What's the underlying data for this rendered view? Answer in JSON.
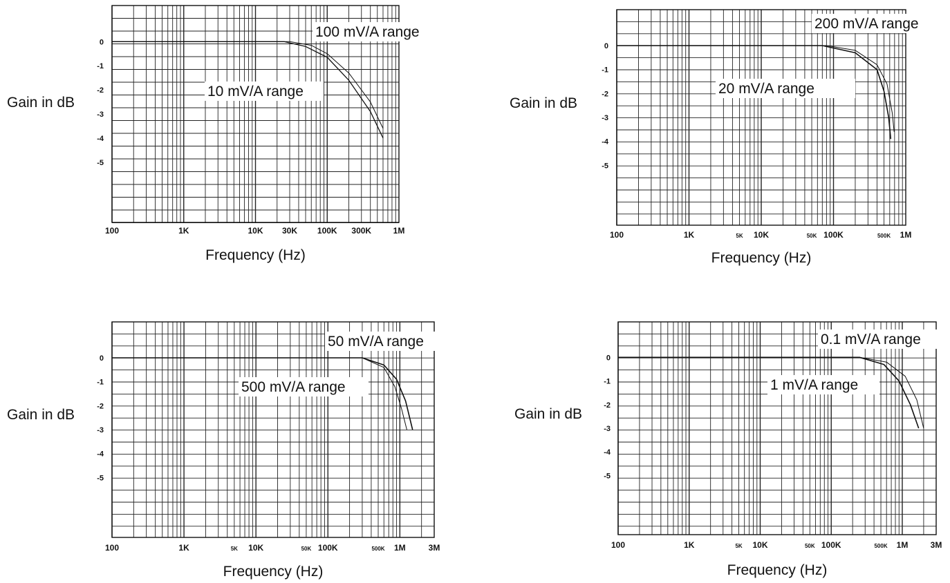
{
  "chart_data": [
    {
      "type": "line",
      "title": "",
      "xlabel": "Frequency (Hz)",
      "ylabel": "Gain in dB",
      "xscale": "log",
      "xlim": [
        100,
        1000000
      ],
      "ylim": [
        -7.5,
        1.5
      ],
      "x_ticks": [
        {
          "value": 100,
          "label": "100",
          "size": "large"
        },
        {
          "value": 1000,
          "label": "1K",
          "size": "large"
        },
        {
          "value": 10000,
          "label": "10K",
          "size": "large"
        },
        {
          "value": 30000,
          "label": "30K",
          "size": "large"
        },
        {
          "value": 100000,
          "label": "100K",
          "size": "large"
        },
        {
          "value": 300000,
          "label": "300K",
          "size": "large"
        },
        {
          "value": 1000000,
          "label": "1M",
          "size": "large"
        }
      ],
      "y_ticks": [
        "0",
        "-1",
        "-2",
        "-3",
        "-4",
        "-5"
      ],
      "grid": true,
      "series": [
        {
          "name": "100 mV/A range",
          "x": [
            30000,
            60000,
            100000,
            200000,
            400000,
            600000
          ],
          "y": [
            0,
            -0.15,
            -0.5,
            -1.3,
            -2.5,
            -3.6
          ]
        },
        {
          "name": "10 mV/A range",
          "x": [
            25000,
            50000,
            100000,
            200000,
            400000,
            600000
          ],
          "y": [
            0,
            -0.2,
            -0.65,
            -1.6,
            -2.9,
            -4.0
          ]
        }
      ],
      "annotations": [
        {
          "text": "100 mV/A range",
          "series": 0
        },
        {
          "text": "10 mV/A range",
          "series": 1
        }
      ]
    },
    {
      "type": "line",
      "title": "",
      "xlabel": "Frequency (Hz)",
      "ylabel": "Gain in dB",
      "xscale": "log",
      "xlim": [
        100,
        1000000
      ],
      "ylim": [
        -7.5,
        1.5
      ],
      "x_ticks": [
        {
          "value": 100,
          "label": "100",
          "size": "large"
        },
        {
          "value": 1000,
          "label": "1K",
          "size": "large"
        },
        {
          "value": 5000,
          "label": "5K",
          "size": "small"
        },
        {
          "value": 10000,
          "label": "10K",
          "size": "large"
        },
        {
          "value": 50000,
          "label": "50K",
          "size": "small"
        },
        {
          "value": 100000,
          "label": "100K",
          "size": "large"
        },
        {
          "value": 500000,
          "label": "500K",
          "size": "small"
        },
        {
          "value": 1000000,
          "label": "1M",
          "size": "large"
        }
      ],
      "y_ticks": [
        "0",
        "-1",
        "-2",
        "-3",
        "-4",
        "-5"
      ],
      "grid": true,
      "series": [
        {
          "name": "200 mV/A range",
          "x": [
            80000,
            200000,
            400000,
            550000,
            650000,
            690000
          ],
          "y": [
            0,
            -0.2,
            -0.8,
            -1.6,
            -2.8,
            -3.6
          ]
        },
        {
          "name": "20 mV/A range",
          "x": [
            70000,
            200000,
            400000,
            500000,
            580000,
            620000
          ],
          "y": [
            0,
            -0.3,
            -1.0,
            -1.9,
            -3.0,
            -3.9
          ]
        }
      ],
      "annotations": [
        {
          "text": "200 mV/A range",
          "series": 0
        },
        {
          "text": "20 mV/A range",
          "series": 1
        }
      ]
    },
    {
      "type": "line",
      "title": "",
      "xlabel": "Frequency (Hz)",
      "ylabel": "Gain in dB",
      "xscale": "log",
      "xlim": [
        100,
        3000000
      ],
      "ylim": [
        -7.5,
        1.5
      ],
      "x_ticks": [
        {
          "value": 100,
          "label": "100",
          "size": "large"
        },
        {
          "value": 1000,
          "label": "1K",
          "size": "large"
        },
        {
          "value": 5000,
          "label": "5K",
          "size": "small"
        },
        {
          "value": 10000,
          "label": "10K",
          "size": "large"
        },
        {
          "value": 50000,
          "label": "50K",
          "size": "small"
        },
        {
          "value": 100000,
          "label": "100K",
          "size": "large"
        },
        {
          "value": 500000,
          "label": "500K",
          "size": "small"
        },
        {
          "value": 1000000,
          "label": "1M",
          "size": "large"
        },
        {
          "value": 3000000,
          "label": "3M",
          "size": "large"
        }
      ],
      "y_ticks": [
        "0",
        "-1",
        "-2",
        "-3",
        "-4",
        "-5"
      ],
      "grid": true,
      "series": [
        {
          "name": "50 mV/A range",
          "x": [
            300000,
            600000,
            900000,
            1200000,
            1500000
          ],
          "y": [
            0,
            -0.3,
            -0.9,
            -1.8,
            -3.0
          ]
        },
        {
          "name": "500 mV/A range",
          "x": [
            300000,
            600000,
            850000,
            1050000,
            1250000
          ],
          "y": [
            0,
            -0.4,
            -1.2,
            -2.1,
            -3.0
          ]
        }
      ],
      "annotations": [
        {
          "text": "50 mV/A range",
          "series": 0
        },
        {
          "text": "500 mV/A range",
          "series": 1
        }
      ]
    },
    {
      "type": "line",
      "title": "",
      "xlabel": "Frequency (Hz)",
      "ylabel": "Gain in dB",
      "xscale": "log",
      "xlim": [
        100,
        3000000
      ],
      "ylim": [
        -7.5,
        1.5
      ],
      "x_ticks": [
        {
          "value": 100,
          "label": "100",
          "size": "large"
        },
        {
          "value": 1000,
          "label": "1K",
          "size": "large"
        },
        {
          "value": 5000,
          "label": "5K",
          "size": "small"
        },
        {
          "value": 10000,
          "label": "10K",
          "size": "large"
        },
        {
          "value": 50000,
          "label": "50K",
          "size": "small"
        },
        {
          "value": 100000,
          "label": "100K",
          "size": "large"
        },
        {
          "value": 500000,
          "label": "500K",
          "size": "small"
        },
        {
          "value": 1000000,
          "label": "1M",
          "size": "large"
        },
        {
          "value": 3000000,
          "label": "3M",
          "size": "large"
        }
      ],
      "y_ticks": [
        "0",
        "-1",
        "-2",
        "-3",
        "-4",
        "-5"
      ],
      "grid": true,
      "series": [
        {
          "name": "0.1 mV/A range",
          "x": [
            250000,
            600000,
            1100000,
            1600000,
            2000000
          ],
          "y": [
            0,
            -0.2,
            -0.8,
            -1.8,
            -3.0
          ]
        },
        {
          "name": "1 mV/A range",
          "x": [
            250000,
            550000,
            900000,
            1300000,
            1700000
          ],
          "y": [
            0,
            -0.3,
            -1.0,
            -2.0,
            -3.0
          ]
        }
      ],
      "annotations": [
        {
          "text": "0.1 mV/A range",
          "series": 0
        },
        {
          "text": "1 mV/A range",
          "series": 1
        }
      ]
    }
  ]
}
